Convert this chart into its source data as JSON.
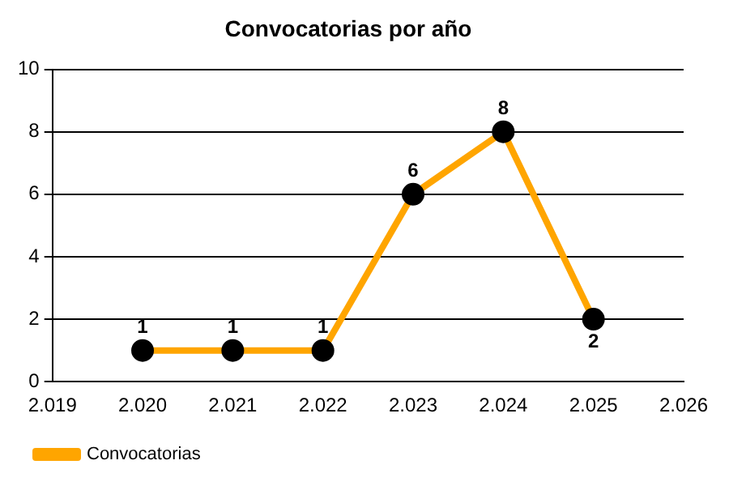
{
  "chart_data": {
    "type": "line",
    "title": "Convocatorias por año",
    "x": [
      2020,
      2021,
      2022,
      2023,
      2024,
      2025
    ],
    "series": [
      {
        "name": "Convocatorias",
        "color": "#ffa500",
        "values": [
          1,
          1,
          1,
          6,
          8,
          2
        ]
      }
    ],
    "xlim": [
      2019,
      2026
    ],
    "xticks": [
      {
        "value": 2019,
        "label": "2.019"
      },
      {
        "value": 2020,
        "label": "2.020"
      },
      {
        "value": 2021,
        "label": "2.021"
      },
      {
        "value": 2022,
        "label": "2.022"
      },
      {
        "value": 2023,
        "label": "2.023"
      },
      {
        "value": 2024,
        "label": "2.024"
      },
      {
        "value": 2025,
        "label": "2.025"
      },
      {
        "value": 2026,
        "label": "2.026"
      }
    ],
    "ylim": [
      0,
      10
    ],
    "yticks": [
      0,
      2,
      4,
      6,
      8,
      10
    ],
    "grid": "y",
    "legend": "bottom left",
    "marker": "circle",
    "line_style": "solid",
    "data_labels": true
  }
}
